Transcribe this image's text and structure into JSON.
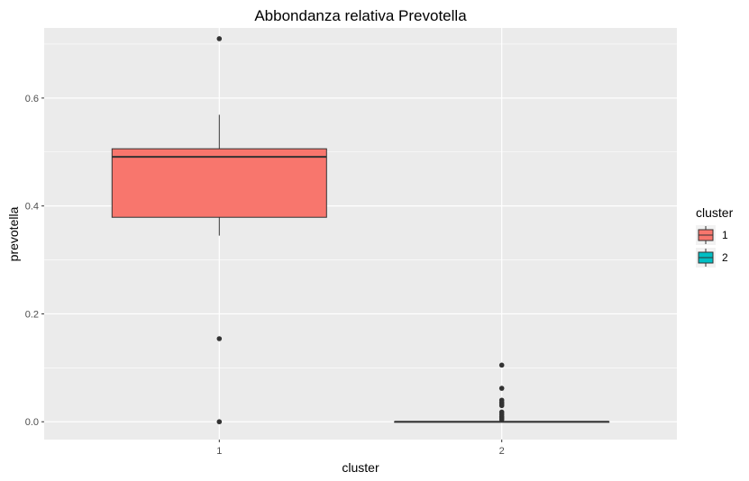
{
  "chart_data": {
    "type": "boxplot",
    "title": "Abbondanza relativa Prevotella",
    "xlabel": "cluster",
    "ylabel": "prevotella",
    "ylim": [
      -0.033,
      0.73
    ],
    "y_ticks": [
      0.0,
      0.2,
      0.4,
      0.6
    ],
    "y_tick_labels": [
      "0.0",
      "0.2",
      "0.4",
      "0.6"
    ],
    "categories": [
      "1",
      "2"
    ],
    "grid": true,
    "background": "#ebebeb",
    "legend": {
      "title": "cluster",
      "position": "right",
      "entries": [
        {
          "label": "1",
          "color": "#f8766d"
        },
        {
          "label": "2",
          "color": "#00bfc4"
        }
      ]
    },
    "boxes": [
      {
        "category": "1",
        "color": "#f8766d",
        "min": 0.345,
        "q1": 0.379,
        "median": 0.491,
        "q3": 0.506,
        "max": 0.569,
        "outliers": [
          0.71,
          0.154,
          0.0
        ]
      },
      {
        "category": "2",
        "color": "#00bfc4",
        "min": 0.0,
        "q1": 0.0,
        "median": 0.0,
        "q3": 0.0,
        "max": 0.0,
        "outliers": [
          0.105,
          0.062,
          0.04,
          0.036,
          0.033,
          0.03,
          0.018,
          0.014,
          0.01,
          0.007,
          0.004
        ]
      }
    ]
  }
}
